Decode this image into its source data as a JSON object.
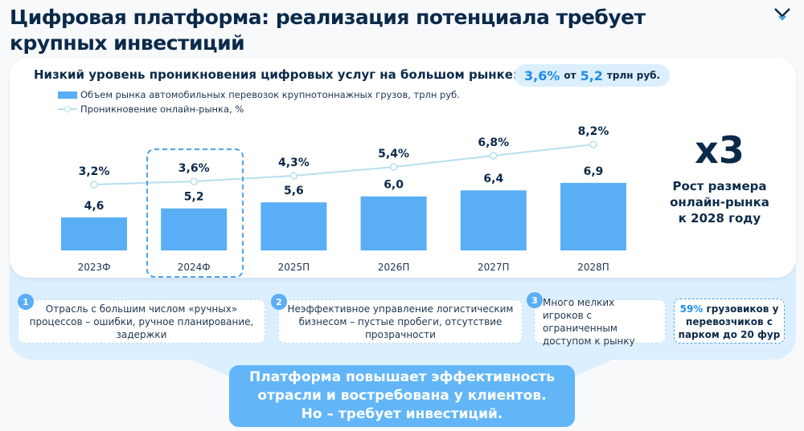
{
  "title": "Цифровая платформа: реализация потенциала требует крупных инвестиций",
  "logo_icon": "chevron-logo-icon",
  "chart_header": {
    "subtitle": "Низкий уровень проникновения цифровых услуг на большом рынке:",
    "pill_pct": "3,6%",
    "pill_of": "от",
    "pill_value": "5,2",
    "pill_unit": "трлн руб."
  },
  "chart_data": {
    "type": "bar+line",
    "categories": [
      "2023Ф",
      "2024Ф",
      "2025П",
      "2026П",
      "2027П",
      "2028П"
    ],
    "series": [
      {
        "name": "Объем рынка автомобильных перевозок крупнотоннажных грузов, трлн руб.",
        "type": "bar",
        "color": "#5aaef5",
        "values": [
          4.6,
          5.2,
          5.6,
          6.0,
          6.4,
          6.9
        ],
        "labels": [
          "4,6",
          "5,2",
          "5,6",
          "6,0",
          "6,4",
          "6,9"
        ]
      },
      {
        "name": "Проникновение онлайн-рынка, %",
        "type": "line",
        "color": "#b6dff0",
        "values": [
          3.2,
          3.6,
          4.3,
          5.4,
          6.8,
          8.2
        ],
        "labels": [
          "3,2%",
          "3,6%",
          "4,3%",
          "5,4%",
          "6,8%",
          "8,2%"
        ]
      }
    ],
    "highlighted_category": "2024Ф",
    "grid": false,
    "legend": "top-left"
  },
  "growth": {
    "multiplier": "x3",
    "line1": "Рост размера",
    "line2": "онлайн-рынка",
    "line3": "к 2028 году"
  },
  "problems": [
    {
      "num": "1",
      "text": "Отрасль с большим числом «ручных» процессов – ошибки, ручное планирование, задержки"
    },
    {
      "num": "2",
      "text": "Неэффективное управление логистическим бизнесом – пустые пробеги, отсутствие прозрачности"
    },
    {
      "num": "3",
      "text": "Много мелких игроков с ограниченным доступом к рынку"
    }
  ],
  "stat": {
    "pct": "59%",
    "text": "грузовиков у перевозчиков с парком до 20 фур"
  },
  "conclusion": {
    "line1": "Платформа повышает эффективность",
    "line2": "отрасли и востребована у клиентов.",
    "line3": "Но – требует инвестиций."
  }
}
